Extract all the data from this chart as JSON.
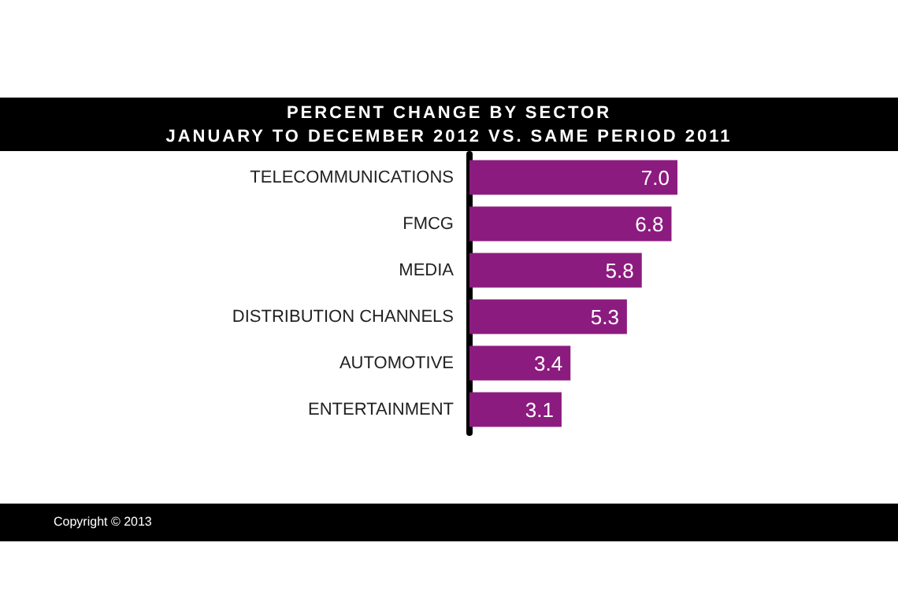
{
  "chart_data": {
    "type": "bar",
    "orientation": "horizontal",
    "title": "PERCENT CHANGE BY SECTOR\nJANUARY TO DECEMBER 2012 VS. SAME PERIOD 2011",
    "categories": [
      "TELECOMMUNICATIONS",
      "FMCG",
      "MEDIA",
      "DISTRIBUTION CHANNELS",
      "AUTOMOTIVE",
      "ENTERTAINMENT"
    ],
    "values": [
      7.0,
      6.8,
      5.8,
      5.3,
      3.4,
      3.1
    ],
    "value_labels": [
      "7.0",
      "6.8",
      "5.8",
      "5.3",
      "3.4",
      "3.1"
    ],
    "color": "#8c1b7f",
    "grid": false,
    "annotations": [
      "Copyright © 2013"
    ]
  }
}
